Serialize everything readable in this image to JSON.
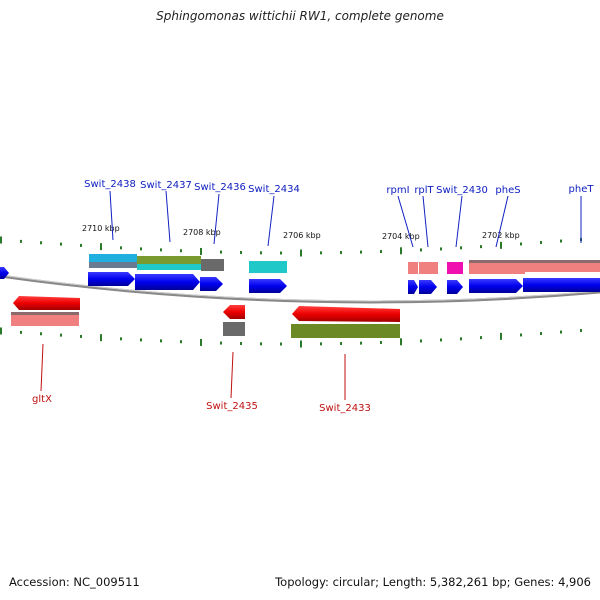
{
  "title": "Sphingomonas wittichii RW1, complete genome",
  "footer": {
    "accession": "Accession: NC_009511",
    "topology": "Topology: circular; Length: 5,382,261 bp; Genes: 4,906"
  },
  "colors": {
    "plus_gene": "#0000ee",
    "minus_gene": "#ee0000",
    "top_label": "#1020c0",
    "bottom_label": "#c01010",
    "tick": "#2a7a2a",
    "backbone": "#888888"
  },
  "tick_labels": [
    "2710 kbp",
    "2708 kbp",
    "2706 kbp",
    "2704 kbp",
    "2702 kbp"
  ],
  "top_labels": [
    "Swit_2438",
    "Swit_2437",
    "Swit_2436",
    "Swit_2434",
    "rpmI",
    "rplT",
    "Swit_2430",
    "pheS",
    "pheT"
  ],
  "bottom_labels": [
    "gltX",
    "Swit_2435",
    "Swit_2433"
  ],
  "annotation_colors": [
    "#1fb0e0",
    "#7a9a30",
    "#6a6a6a",
    "#20c8c8",
    "#f08080",
    "#f010b0"
  ]
}
